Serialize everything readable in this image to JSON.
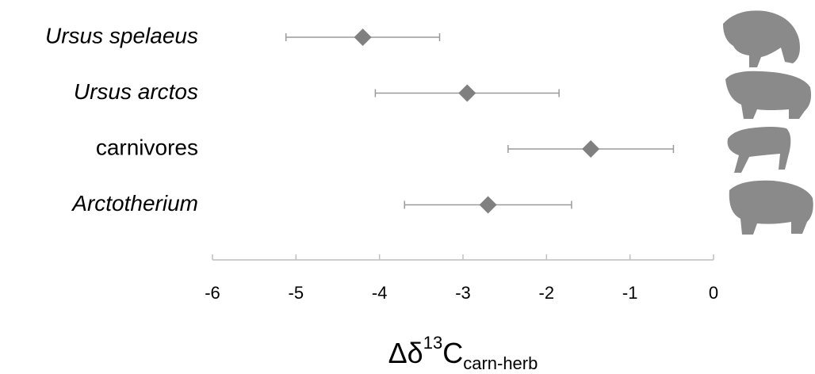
{
  "chart_data": {
    "type": "dot_errorbar",
    "categories": [
      "Ursus spelaeus",
      "Ursus arctos",
      "carnivores",
      "Arctotherium"
    ],
    "italic": [
      true,
      true,
      false,
      true
    ],
    "values": [
      -4.2,
      -2.95,
      -1.47,
      -2.7
    ],
    "errors": [
      0.92,
      1.1,
      0.99,
      1.0
    ],
    "color": "#808080",
    "error_color": "#9a9a9a",
    "xlim": [
      -6,
      0
    ],
    "xticks": [
      -6,
      -5,
      -4,
      -3,
      -2,
      -1,
      0
    ],
    "x_label": {
      "base": "Δδ",
      "sup": "13",
      "main": "C",
      "sub": "carn-herb"
    }
  }
}
